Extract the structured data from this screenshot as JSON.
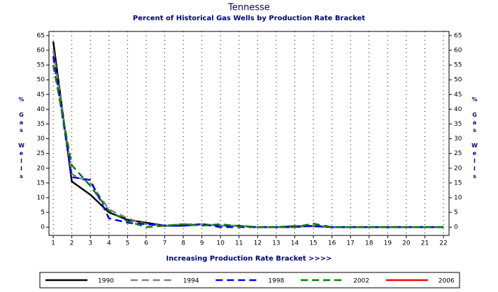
{
  "chart_data": {
    "type": "line",
    "title": "Tennesse",
    "subtitle": "Percent of Historical Gas Wells by Production Rate Bracket",
    "x_label": "Increasing Production Rate Bracket >>>>",
    "y_label": "% Gas Wells",
    "x": [
      1,
      2,
      3,
      4,
      5,
      6,
      7,
      8,
      9,
      10,
      11,
      12,
      13,
      14,
      15,
      16,
      17,
      18,
      19,
      20,
      21,
      22
    ],
    "xlim": [
      0.77,
      22.3
    ],
    "xticks": [
      1,
      2,
      3,
      4,
      5,
      6,
      7,
      8,
      9,
      10,
      11,
      12,
      13,
      14,
      15,
      16,
      17,
      18,
      19,
      20,
      21,
      22
    ],
    "ylim": [
      -2.8,
      66.4
    ],
    "yticks": [
      0,
      5,
      10,
      15,
      20,
      25,
      30,
      35,
      40,
      45,
      50,
      55,
      60,
      65
    ],
    "grid": true,
    "series": [
      {
        "name": "1990",
        "color": "#000000",
        "dashed": false,
        "values": [
          63,
          15.5,
          11,
          5,
          2.5,
          1.5,
          0.5,
          0.5,
          1,
          0.5,
          0.5,
          0,
          0,
          0.3,
          0.3,
          0,
          0,
          0,
          0,
          0,
          0,
          0
        ]
      },
      {
        "name": "1994",
        "color": "#808080",
        "dashed": true,
        "values": [
          60,
          18,
          15,
          6,
          3,
          1,
          0.5,
          1,
          1,
          0.5,
          0.5,
          0,
          0,
          0,
          0.5,
          0,
          0,
          0,
          0,
          0,
          0,
          0
        ]
      },
      {
        "name": "1998",
        "color": "#0000ff",
        "dashed": true,
        "values": [
          58,
          17,
          16,
          3,
          1.5,
          1,
          0.5,
          0.5,
          1,
          0,
          0,
          0,
          0,
          0,
          0.5,
          0,
          0,
          0,
          0,
          0,
          0,
          0
        ]
      },
      {
        "name": "2002",
        "color": "#008000",
        "dashed": true,
        "values": [
          55,
          21,
          14,
          5.5,
          2,
          0,
          0.5,
          1,
          0.5,
          1,
          0.3,
          0,
          0,
          0,
          1.2,
          0,
          0,
          0,
          0,
          0,
          0,
          0
        ]
      },
      {
        "name": "2006",
        "color": "#ff0000",
        "dashed": false,
        "values": [
          null,
          null,
          null,
          null,
          null,
          null,
          null,
          null,
          null,
          null,
          null,
          null,
          null,
          null,
          null,
          null,
          null,
          null,
          null,
          null,
          null,
          null
        ]
      }
    ]
  }
}
